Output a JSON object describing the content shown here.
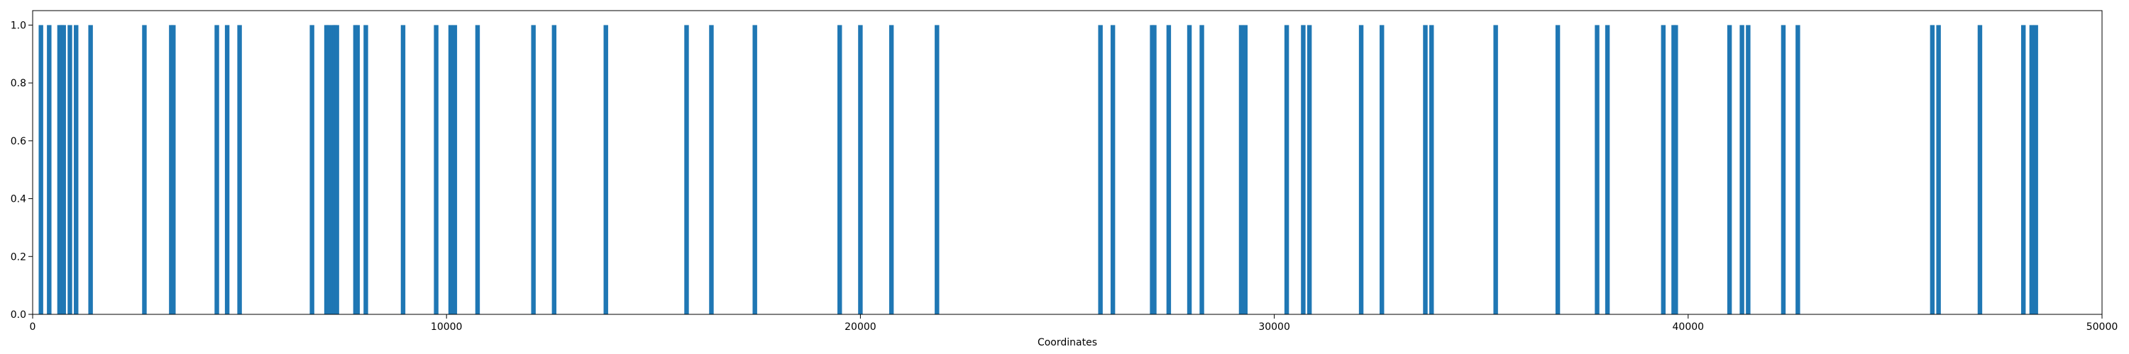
{
  "chart_data": {
    "type": "bar",
    "title": "",
    "xlabel": "Coordinates",
    "ylabel": "",
    "xlim": [
      0,
      50000
    ],
    "ylim": [
      0,
      1.05
    ],
    "xticks": [
      0,
      10000,
      20000,
      30000,
      40000,
      50000
    ],
    "yticks": [
      0.0,
      0.2,
      0.4,
      0.6,
      0.8,
      1.0
    ],
    "yticklabels": [
      "0.0",
      "0.2",
      "0.4",
      "0.6",
      "0.8",
      "1.0"
    ],
    "grid": false,
    "bar_color": "#1f77b4",
    "x": [
      200,
      400,
      650,
      700,
      750,
      900,
      1050,
      1400,
      2700,
      3350,
      3400,
      4450,
      4700,
      5000,
      6750,
      7100,
      7150,
      7250,
      7300,
      7350,
      7800,
      7850,
      8050,
      8950,
      9750,
      10100,
      10200,
      10750,
      12100,
      12600,
      13850,
      15800,
      16400,
      17450,
      19500,
      20000,
      20750,
      21850,
      25800,
      26100,
      27050,
      27100,
      27450,
      27950,
      28250,
      29200,
      29300,
      30300,
      30700,
      30850,
      32100,
      32600,
      33650,
      33800,
      35350,
      36850,
      37800,
      38050,
      39400,
      39650,
      39700,
      41000,
      41300,
      41450,
      42300,
      42650,
      45900,
      46050,
      47050,
      48100,
      48300,
      48400
    ],
    "values": [
      1,
      1,
      1,
      1,
      1,
      1,
      1,
      1,
      1,
      1,
      1,
      1,
      1,
      1,
      1,
      1,
      1,
      1,
      1,
      1,
      1,
      1,
      1,
      1,
      1,
      1,
      1,
      1,
      1,
      1,
      1,
      1,
      1,
      1,
      1,
      1,
      1,
      1,
      1,
      1,
      1,
      1,
      1,
      1,
      1,
      1,
      1,
      1,
      1,
      1,
      1,
      1,
      1,
      1,
      1,
      1,
      1,
      1,
      1,
      1,
      1,
      1,
      1,
      1,
      1,
      1,
      1,
      1,
      1,
      1,
      1,
      1
    ]
  }
}
